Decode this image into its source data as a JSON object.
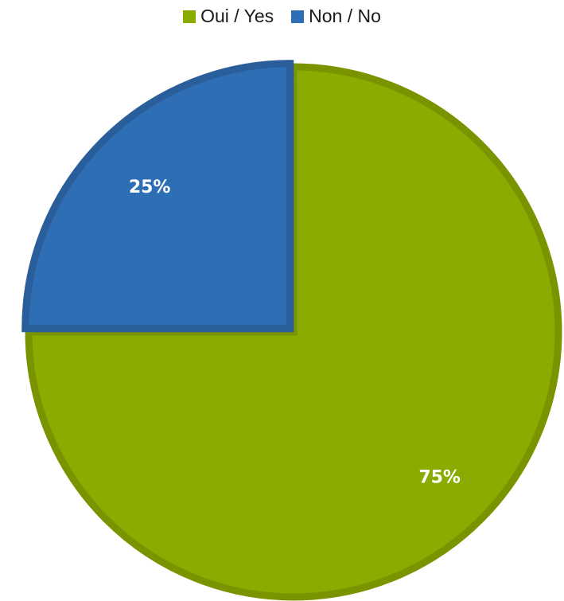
{
  "chart_data": {
    "type": "pie",
    "categories": [
      "Oui / Yes",
      "Non / No"
    ],
    "values": [
      75,
      25
    ],
    "data_labels": [
      "75%",
      "25%"
    ],
    "colors": [
      "#8aab00",
      "#2e6eb5"
    ],
    "border_colors": [
      "#7a9400",
      "#2a5e9a"
    ],
    "legend_position": "top"
  }
}
